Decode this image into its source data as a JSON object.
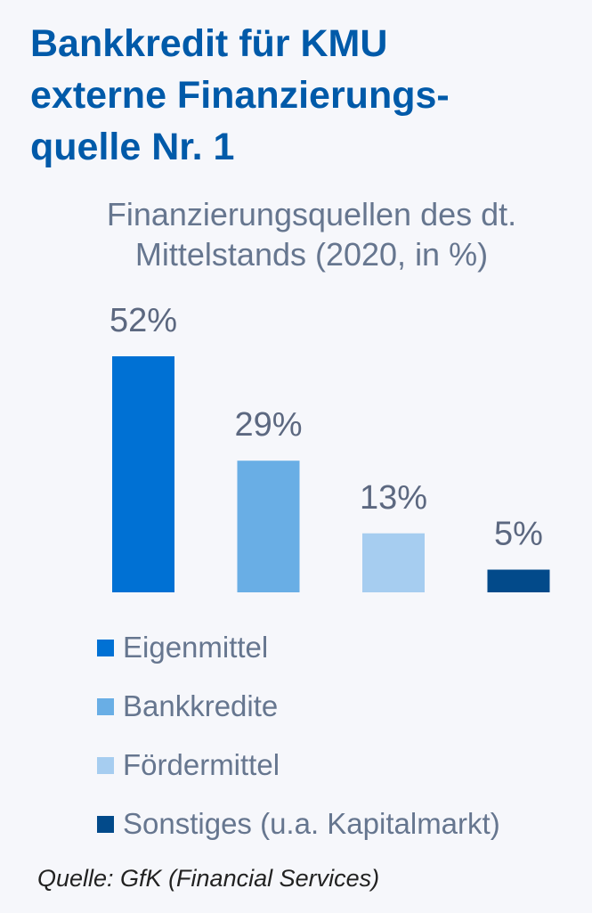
{
  "headline": {
    "lines": [
      "Bankkredit für KMU",
      "externe Finanzierungs-",
      "quelle Nr. 1"
    ]
  },
  "source": "Quelle: GfK (Financial Services)",
  "colors": {
    "background": "#f6f7fb",
    "headline": "#005aa9",
    "subtitle": "#66768f"
  },
  "chart_data": {
    "type": "bar",
    "title": "Finanzierungsquellen des dt. Mittelstands (2020, in %)",
    "title_lines": [
      "Finanzierungsquellen des dt.",
      "Mittelstands (2020, in %)"
    ],
    "categories": [
      "Eigenmittel",
      "Bankkredite",
      "Fördermittel",
      "Sonstiges (u.a. Kapitalmarkt)"
    ],
    "values": [
      52,
      29,
      13,
      5
    ],
    "data_labels": [
      "52%",
      "29%",
      "13%",
      "5%"
    ],
    "colors": [
      "#0071d4",
      "#69aee5",
      "#a6cdf0",
      "#024a8a"
    ],
    "unit": "%",
    "ylim": [
      0,
      52
    ],
    "grid": false,
    "axes_visible": false,
    "legend_placement": "bottom-left"
  }
}
